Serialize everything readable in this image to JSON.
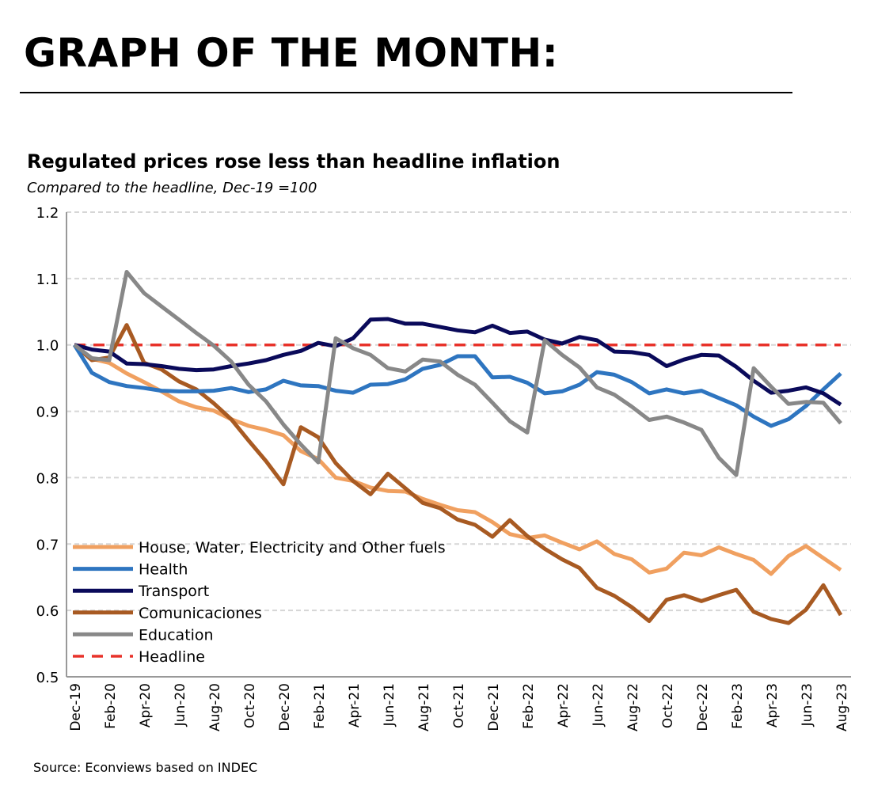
{
  "header": {
    "title": "GRAPH OF THE MONTH:"
  },
  "chart_data": {
    "type": "line",
    "title": "Regulated prices rose less than headline inflation",
    "subtitle": "Compared to the headline, Dec-19 =100",
    "source": "Source: Econviews based on INDEC",
    "ylim": [
      0.5,
      1.2
    ],
    "yticks": [
      "0.5",
      "0.6",
      "0.7",
      "0.8",
      "0.9",
      "1.0",
      "1.1",
      "1.2"
    ],
    "grid": true,
    "legend_position": "bottom-left",
    "x": [
      "Dec-19",
      "Jan-20",
      "Feb-20",
      "Mar-20",
      "Apr-20",
      "May-20",
      "Jun-20",
      "Jul-20",
      "Aug-20",
      "Sep-20",
      "Oct-20",
      "Nov-20",
      "Dec-20",
      "Jan-21",
      "Feb-21",
      "Mar-21",
      "Apr-21",
      "May-21",
      "Jun-21",
      "Jul-21",
      "Aug-21",
      "Sep-21",
      "Oct-21",
      "Nov-21",
      "Dec-21",
      "Jan-22",
      "Feb-22",
      "Mar-22",
      "Apr-22",
      "May-22",
      "Jun-22",
      "Jul-22",
      "Aug-22",
      "Sep-22",
      "Oct-22",
      "Nov-22",
      "Dec-22",
      "Jan-23",
      "Feb-23",
      "Mar-23",
      "Apr-23",
      "May-23",
      "Jun-23",
      "Jul-23",
      "Aug-23"
    ],
    "xtick_labels": [
      "Dec-19",
      "Feb-20",
      "Apr-20",
      "Jun-20",
      "Aug-20",
      "Oct-20",
      "Dec-20",
      "Feb-21",
      "Apr-21",
      "Jun-21",
      "Aug-21",
      "Oct-21",
      "Dec-21",
      "Feb-22",
      "Apr-22",
      "Jun-22",
      "Aug-22",
      "Oct-22",
      "Dec-22",
      "Feb-23",
      "Apr-23",
      "Jun-23",
      "Aug-23"
    ],
    "series": [
      {
        "name": "House, Water, Electricity and Other fuels",
        "color": "#F0A060",
        "dashed": false,
        "values": [
          1.0,
          0.979,
          0.973,
          0.957,
          0.944,
          0.93,
          0.915,
          0.906,
          0.901,
          0.888,
          0.878,
          0.872,
          0.864,
          0.84,
          0.828,
          0.8,
          0.795,
          0.785,
          0.78,
          0.779,
          0.768,
          0.759,
          0.751,
          0.748,
          0.733,
          0.715,
          0.709,
          0.713,
          0.702,
          0.692,
          0.704,
          0.685,
          0.677,
          0.657,
          0.663,
          0.687,
          0.683,
          0.695,
          0.685,
          0.676,
          0.655,
          0.682,
          0.697,
          0.679,
          0.661
        ]
      },
      {
        "name": "Health",
        "color": "#2E75C0",
        "dashed": false,
        "values": [
          1.0,
          0.958,
          0.944,
          0.938,
          0.935,
          0.931,
          0.93,
          0.93,
          0.931,
          0.935,
          0.929,
          0.933,
          0.946,
          0.939,
          0.938,
          0.931,
          0.928,
          0.94,
          0.941,
          0.948,
          0.964,
          0.97,
          0.983,
          0.983,
          0.951,
          0.952,
          0.943,
          0.927,
          0.93,
          0.94,
          0.959,
          0.955,
          0.944,
          0.927,
          0.933,
          0.927,
          0.931,
          0.92,
          0.909,
          0.892,
          0.878,
          0.888,
          0.908,
          0.933,
          0.957
        ]
      },
      {
        "name": "Transport",
        "color": "#0A0A5A",
        "dashed": false,
        "values": [
          1.0,
          0.993,
          0.99,
          0.972,
          0.971,
          0.968,
          0.964,
          0.962,
          0.963,
          0.968,
          0.972,
          0.977,
          0.985,
          0.991,
          1.003,
          0.998,
          1.01,
          1.038,
          1.039,
          1.032,
          1.032,
          1.027,
          1.022,
          1.019,
          1.029,
          1.018,
          1.02,
          1.008,
          1.002,
          1.012,
          1.007,
          0.99,
          0.989,
          0.985,
          0.968,
          0.978,
          0.985,
          0.984,
          0.967,
          0.946,
          0.928,
          0.931,
          0.936,
          0.927,
          0.91
        ]
      },
      {
        "name": "Comunicaciones",
        "color": "#A85A22",
        "dashed": false,
        "values": [
          1.0,
          0.977,
          0.981,
          1.03,
          0.973,
          0.963,
          0.945,
          0.933,
          0.912,
          0.888,
          0.856,
          0.825,
          0.79,
          0.876,
          0.861,
          0.822,
          0.795,
          0.775,
          0.806,
          0.784,
          0.762,
          0.754,
          0.737,
          0.729,
          0.711,
          0.736,
          0.712,
          0.693,
          0.677,
          0.664,
          0.634,
          0.622,
          0.605,
          0.584,
          0.616,
          0.623,
          0.614,
          0.623,
          0.631,
          0.598,
          0.587,
          0.581,
          0.601,
          0.638,
          0.593
        ]
      },
      {
        "name": "Education",
        "color": "#888888",
        "dashed": false,
        "values": [
          1.0,
          0.98,
          0.977,
          1.11,
          1.078,
          1.058,
          1.038,
          1.018,
          0.999,
          0.975,
          0.94,
          0.915,
          0.88,
          0.85,
          0.823,
          1.01,
          0.995,
          0.985,
          0.965,
          0.96,
          0.978,
          0.975,
          0.955,
          0.94,
          0.913,
          0.885,
          0.868,
          1.007,
          0.985,
          0.966,
          0.936,
          0.925,
          0.907,
          0.887,
          0.892,
          0.883,
          0.872,
          0.83,
          0.804,
          0.965,
          0.937,
          0.911,
          0.914,
          0.913,
          0.882
        ]
      },
      {
        "name": "Headline",
        "color": "#E8322A",
        "dashed": true,
        "values": [
          1,
          1,
          1,
          1,
          1,
          1,
          1,
          1,
          1,
          1,
          1,
          1,
          1,
          1,
          1,
          1,
          1,
          1,
          1,
          1,
          1,
          1,
          1,
          1,
          1,
          1,
          1,
          1,
          1,
          1,
          1,
          1,
          1,
          1,
          1,
          1,
          1,
          1,
          1,
          1,
          1,
          1,
          1,
          1,
          1
        ]
      }
    ]
  }
}
